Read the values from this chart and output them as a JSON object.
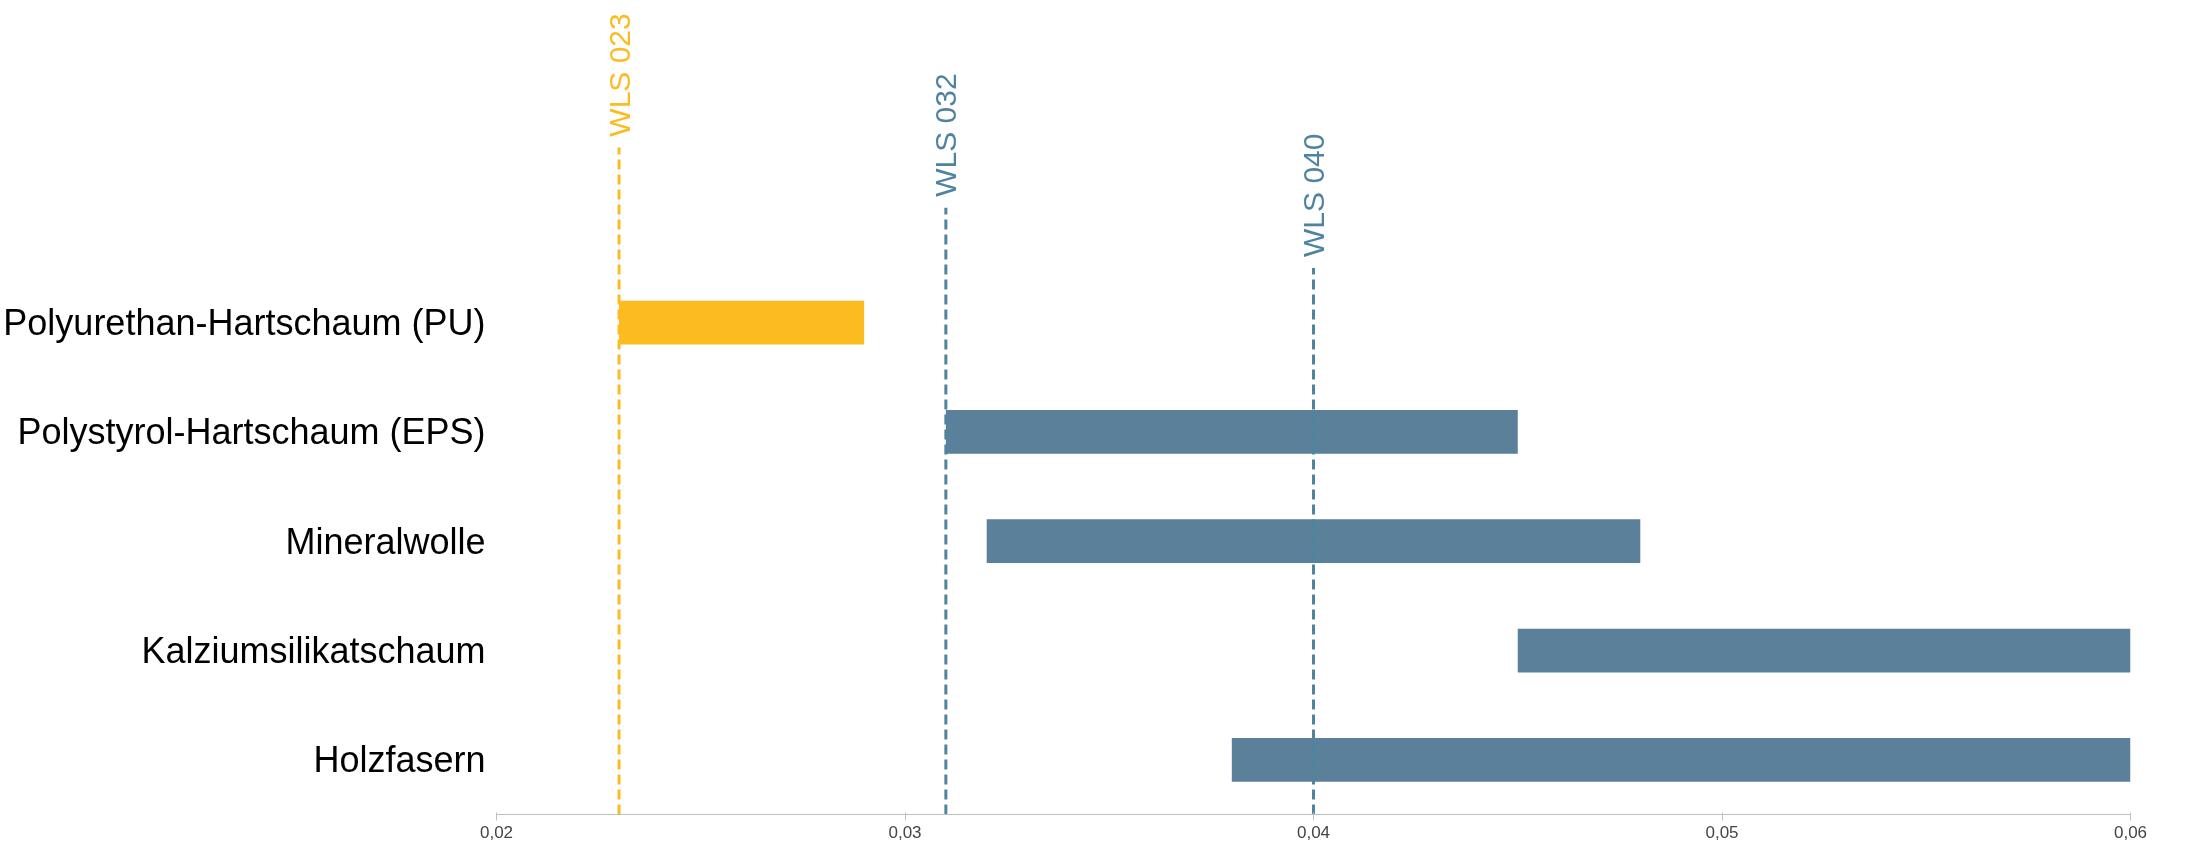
{
  "chart_data": {
    "type": "bar",
    "orientation": "horizontal",
    "categories": [
      "Polyurethan-Hartschaum (PU)",
      "Polystyrol-Hartschaum (EPS)",
      "Mineralwolle",
      "Kalziumsilikatschaum",
      "Holzfasern"
    ],
    "base": [
      0.023,
      0.031,
      0.032,
      0.045,
      0.038
    ],
    "values": [
      0.006,
      0.014,
      0.016,
      0.015,
      0.022
    ],
    "colors": [
      "#fbbb21",
      "#5a8199",
      "#5a8199",
      "#5a8199",
      "#5a8199"
    ],
    "xlim": [
      0.02,
      0.06
    ],
    "xticks": [
      {
        "value": 0.02,
        "label": "0,02"
      },
      {
        "value": 0.03,
        "label": "0,03"
      },
      {
        "value": 0.04,
        "label": "0,04"
      },
      {
        "value": 0.05,
        "label": "0,05"
      },
      {
        "value": 0.06,
        "label": "0,06"
      }
    ],
    "ref_lines": [
      {
        "axis": "x",
        "value": 0.023,
        "label": "WLS 023",
        "color": "#fbbb21",
        "line_style": "dashed"
      },
      {
        "axis": "x",
        "value": 0.031,
        "label": "WLS 032",
        "color": "#4f84a0",
        "line_style": "dashed"
      },
      {
        "axis": "x",
        "value": 0.04,
        "label": "WLS 040",
        "color": "#4f84a0",
        "line_style": "dashed"
      }
    ],
    "grid": false
  }
}
